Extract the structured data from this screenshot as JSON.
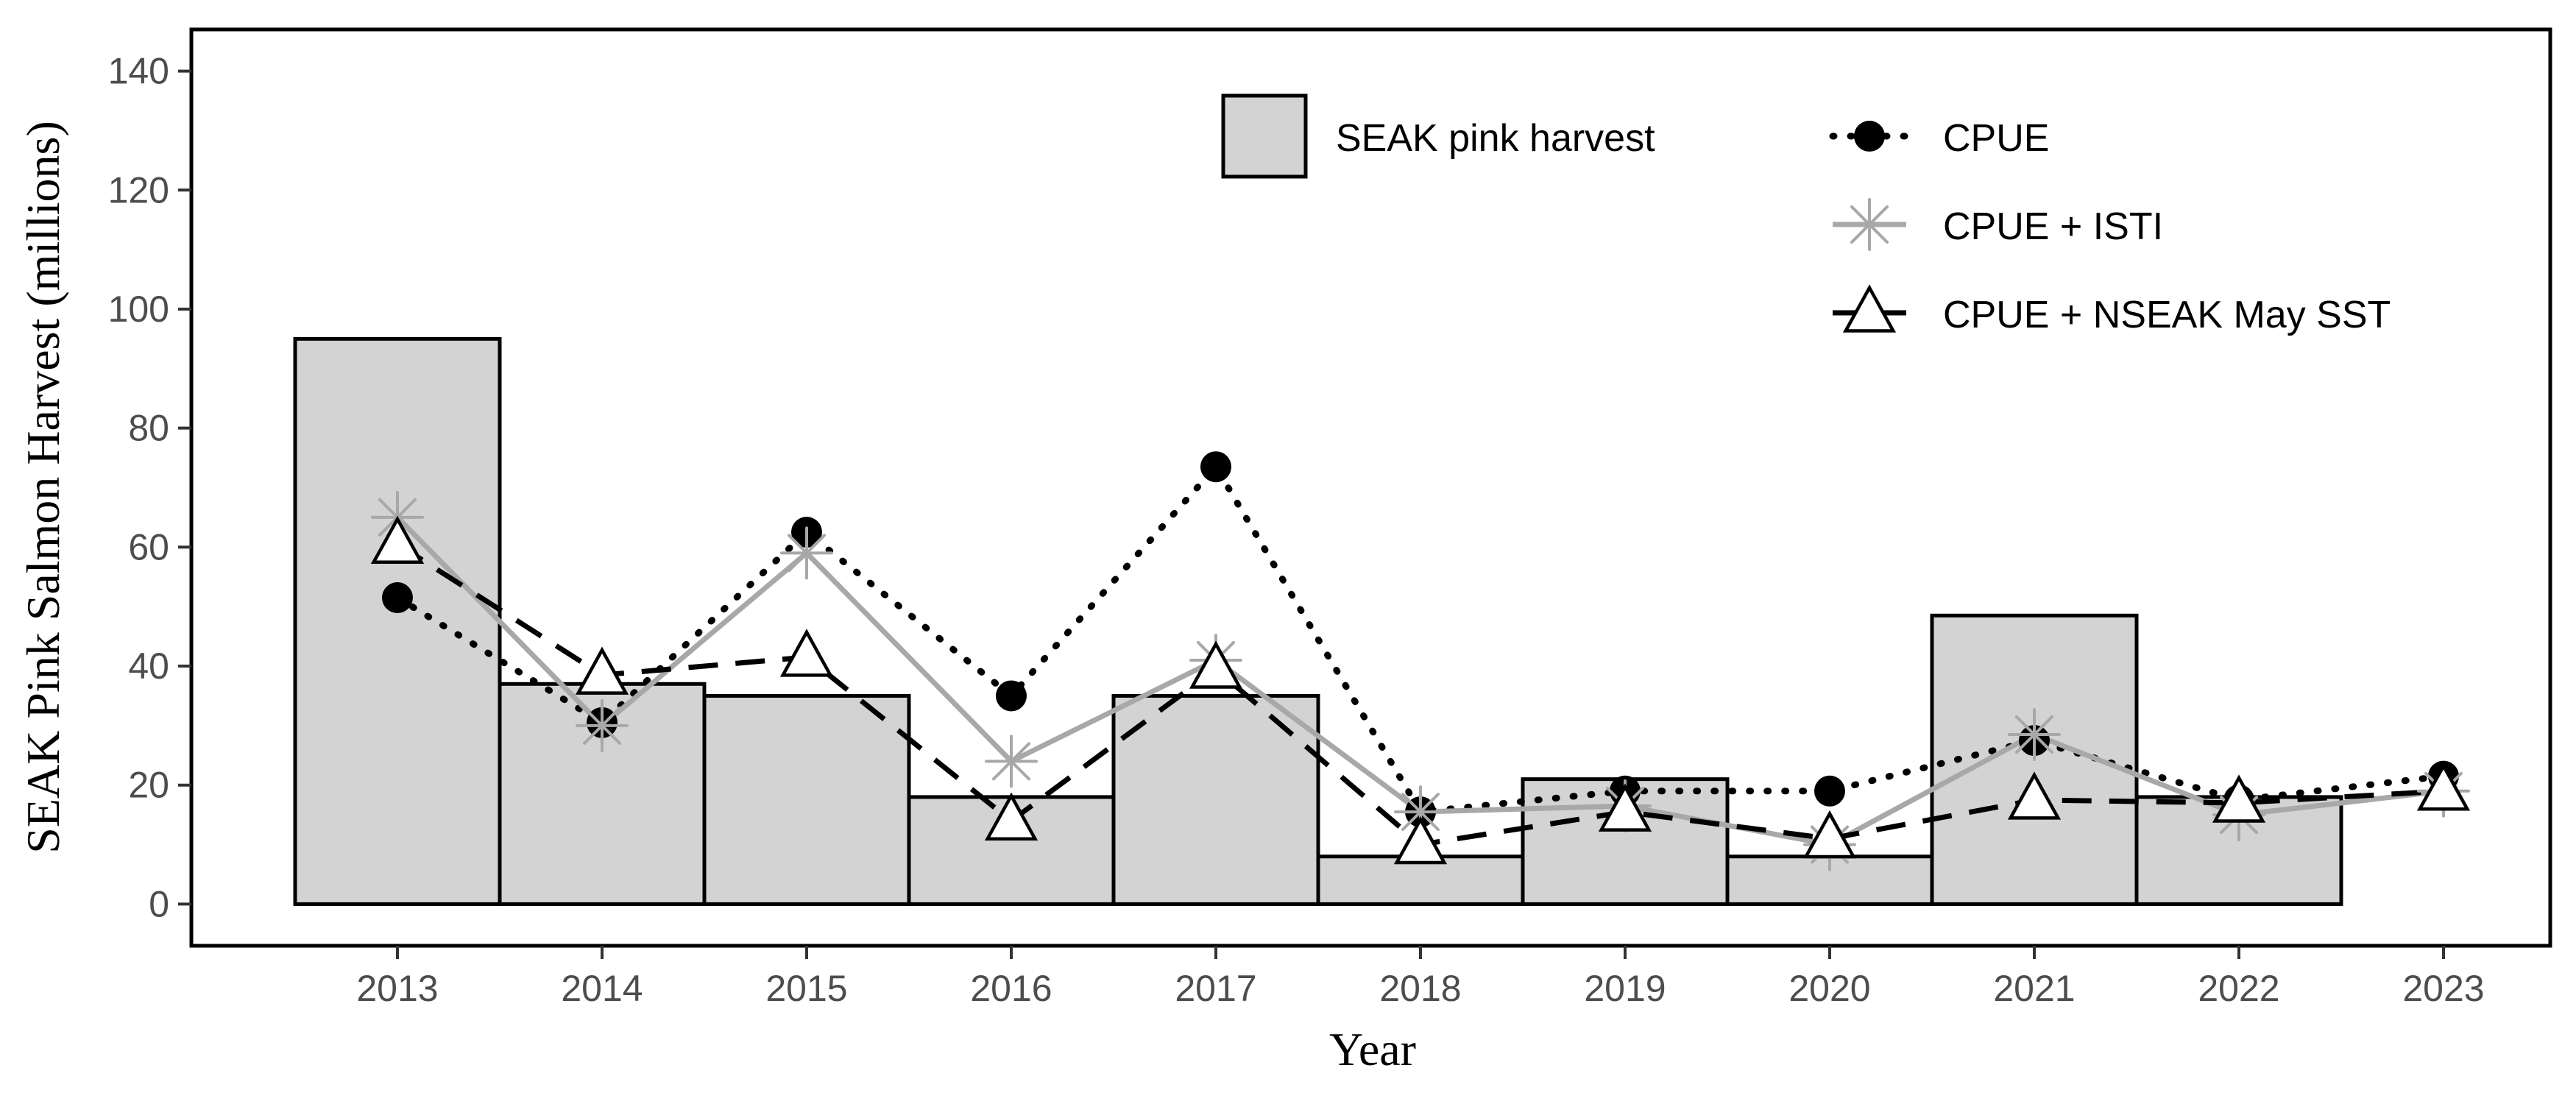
{
  "chart_data": {
    "type": "bar",
    "xlabel": "Year",
    "ylabel": "SEAK Pink Salmon Harvest (millions)",
    "categories": [
      "2013",
      "2014",
      "2015",
      "2016",
      "2017",
      "2018",
      "2019",
      "2020",
      "2021",
      "2022",
      "2023"
    ],
    "ylim": [
      -7,
      147
    ],
    "yticks": [
      0,
      20,
      40,
      60,
      80,
      100,
      120,
      140
    ],
    "grid": false,
    "legend_position": "top-right",
    "bars": {
      "name": "SEAK pink harvest",
      "values": [
        95,
        37,
        35,
        18,
        35,
        8,
        21,
        8,
        48.5,
        18,
        null
      ],
      "fill": "#d3d3d3",
      "stroke": "#000000"
    },
    "series": [
      {
        "name": "CPUE",
        "values": [
          51.5,
          30.5,
          62.5,
          35,
          73.5,
          15.5,
          19,
          19,
          27.5,
          17.5,
          21.5
        ],
        "color": "#000000",
        "marker": "filled-circle",
        "line": "dotted"
      },
      {
        "name": "CPUE + ISTI",
        "values": [
          65,
          30,
          59,
          24,
          41,
          15.5,
          16.5,
          10,
          28.5,
          15,
          19
        ],
        "color": "#a8a8a8",
        "marker": "asterisk",
        "line": "solid"
      },
      {
        "name": "CPUE + NSEAK May SST",
        "values": [
          60.5,
          38.5,
          41.5,
          14,
          39.5,
          10,
          15.5,
          11,
          17.5,
          17,
          19
        ],
        "color": "#000000",
        "marker": "open-triangle",
        "line": "dashed"
      }
    ]
  }
}
